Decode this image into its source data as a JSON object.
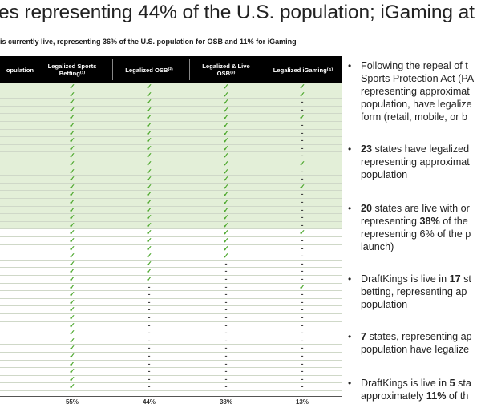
{
  "title": "es representing 44% of the U.S. population; iGaming at",
  "subtitle": "is currently live, representing 36% of the U.S. population for OSB and 11% for iGaming",
  "table": {
    "headers": [
      "opulation",
      "Legalized Sports\nBetting⁽¹⁾",
      "Legalized OSB⁽²⁾",
      "Legalized & Live\nOSB⁽³⁾",
      "Legalized iGaming⁽⁴⁾"
    ],
    "rows": [
      {
        "green": true,
        "sb": "✓",
        "osb": "✓",
        "live": "✓",
        "ig": "✓"
      },
      {
        "green": true,
        "sb": "✓",
        "osb": "✓",
        "live": "✓",
        "ig": "✓"
      },
      {
        "green": true,
        "sb": "✓",
        "osb": "✓",
        "live": "✓",
        "ig": "-"
      },
      {
        "green": true,
        "sb": "✓",
        "osb": "✓",
        "live": "✓",
        "ig": "-"
      },
      {
        "green": true,
        "sb": "✓",
        "osb": "✓",
        "live": "✓",
        "ig": "✓"
      },
      {
        "green": true,
        "sb": "✓",
        "osb": "✓",
        "live": "✓",
        "ig": "-"
      },
      {
        "green": true,
        "sb": "✓",
        "osb": "✓",
        "live": "✓",
        "ig": "-"
      },
      {
        "green": true,
        "sb": "✓",
        "osb": "✓",
        "live": "✓",
        "ig": "-"
      },
      {
        "green": true,
        "sb": "✓",
        "osb": "✓",
        "live": "✓",
        "ig": "-"
      },
      {
        "green": true,
        "sb": "✓",
        "osb": "✓",
        "live": "✓",
        "ig": "-"
      },
      {
        "green": true,
        "sb": "✓",
        "osb": "✓",
        "live": "✓",
        "ig": "✓"
      },
      {
        "green": true,
        "sb": "✓",
        "osb": "✓",
        "live": "✓",
        "ig": "-"
      },
      {
        "green": true,
        "sb": "✓",
        "osb": "✓",
        "live": "✓",
        "ig": "-"
      },
      {
        "green": true,
        "sb": "✓",
        "osb": "✓",
        "live": "✓",
        "ig": "✓"
      },
      {
        "green": true,
        "sb": "✓",
        "osb": "✓",
        "live": "✓",
        "ig": "-"
      },
      {
        "green": true,
        "sb": "✓",
        "osb": "✓",
        "live": "✓",
        "ig": "-"
      },
      {
        "green": true,
        "sb": "✓",
        "osb": "✓",
        "live": "✓",
        "ig": "-"
      },
      {
        "green": true,
        "sb": "✓",
        "osb": "✓",
        "live": "✓",
        "ig": "-"
      },
      {
        "green": true,
        "sb": "✓",
        "osb": "✓",
        "live": "✓",
        "ig": "-"
      },
      {
        "green": false,
        "sb": "✓",
        "osb": "✓",
        "live": "✓",
        "ig": "✓"
      },
      {
        "green": false,
        "sb": "✓",
        "osb": "✓",
        "live": "✓",
        "ig": "-"
      },
      {
        "green": false,
        "sb": "✓",
        "osb": "✓",
        "live": "✓",
        "ig": "-"
      },
      {
        "green": false,
        "sb": "✓",
        "osb": "✓",
        "live": "✓",
        "ig": "-"
      },
      {
        "green": false,
        "sb": "✓",
        "osb": "✓",
        "live": "-",
        "ig": "-"
      },
      {
        "green": false,
        "sb": "✓",
        "osb": "✓",
        "live": "-",
        "ig": "-"
      },
      {
        "green": false,
        "sb": "✓",
        "osb": "✓",
        "live": "-",
        "ig": "-"
      },
      {
        "green": false,
        "sb": "✓",
        "osb": "-",
        "live": "-",
        "ig": "✓"
      },
      {
        "green": false,
        "sb": "✓",
        "osb": "-",
        "live": "-",
        "ig": "-"
      },
      {
        "green": false,
        "sb": "✓",
        "osb": "-",
        "live": "-",
        "ig": "-"
      },
      {
        "green": false,
        "sb": "✓",
        "osb": "-",
        "live": "-",
        "ig": "-"
      },
      {
        "green": false,
        "sb": "✓",
        "osb": "-",
        "live": "-",
        "ig": "-"
      },
      {
        "green": false,
        "sb": "✓",
        "osb": "-",
        "live": "-",
        "ig": "-"
      },
      {
        "green": false,
        "sb": "✓",
        "osb": "-",
        "live": "-",
        "ig": "-"
      },
      {
        "green": false,
        "sb": "✓",
        "osb": "-",
        "live": "-",
        "ig": "-"
      },
      {
        "green": false,
        "sb": "✓",
        "osb": "-",
        "live": "-",
        "ig": "-"
      },
      {
        "green": false,
        "sb": "✓",
        "osb": "-",
        "live": "-",
        "ig": "-"
      },
      {
        "green": false,
        "sb": "✓",
        "osb": "-",
        "live": "-",
        "ig": "-"
      },
      {
        "green": false,
        "sb": "✓",
        "osb": "-",
        "live": "-",
        "ig": "-"
      },
      {
        "green": false,
        "sb": "✓",
        "osb": "-",
        "live": "-",
        "ig": "-"
      },
      {
        "green": false,
        "sb": "✓",
        "osb": "-",
        "live": "-",
        "ig": "-"
      }
    ],
    "totals": [
      "55%",
      "44%",
      "38%",
      "13%"
    ]
  },
  "colors": {
    "check": "#4aa62a",
    "green_row": "#e3efd8",
    "header_bg": "#000000"
  },
  "bullets": [
    {
      "lines": [
        [
          "Following the repeal of t"
        ],
        [
          "Sports Protection Act (PA"
        ],
        [
          "representing approximat"
        ],
        [
          "population, have legalize"
        ],
        [
          "form (retail, mobile, or b"
        ]
      ]
    },
    {
      "lines": [
        [
          "",
          "23",
          " states have legalized"
        ],
        [
          "representing approximat"
        ],
        [
          "population"
        ]
      ]
    },
    {
      "lines": [
        [
          "",
          "20",
          " states are live with or"
        ],
        [
          "representing ",
          "38%",
          " of the"
        ],
        [
          "representing 6% of the p"
        ],
        [
          "launch)"
        ]
      ]
    },
    {
      "lines": [
        [
          "DraftKings is live in ",
          "17",
          " st"
        ],
        [
          "betting, representing ap"
        ],
        [
          "population"
        ]
      ]
    },
    {
      "lines": [
        [
          "",
          "7",
          " states, representing ap"
        ],
        [
          "population have legalize"
        ]
      ]
    },
    {
      "lines": [
        [
          "DraftKings is live in ",
          "5",
          " sta"
        ],
        [
          "approximately ",
          "11%",
          " of th"
        ]
      ]
    }
  ]
}
